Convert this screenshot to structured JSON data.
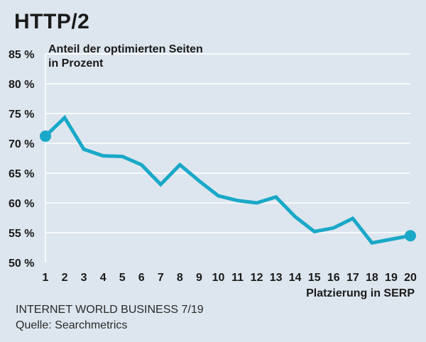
{
  "title": "HTTP/2",
  "source_line1": "INTERNET WORLD BUSINESS 7/19",
  "source_line2": "Quelle: Searchmetrics",
  "colors": {
    "background": "#dde6ee",
    "line": "#1aa8c8",
    "grid": "#ffffff"
  },
  "chart_data": {
    "type": "line",
    "ylabel_line1": "Anteil der optimierten Seiten",
    "ylabel_line2": "in Prozent",
    "xlabel": "Platzierung in SERP",
    "ylim": [
      50,
      85
    ],
    "yticks": [
      50,
      55,
      60,
      65,
      70,
      75,
      80,
      85
    ],
    "ytick_labels": [
      "50 %",
      "55 %",
      "60 %",
      "65 %",
      "70 %",
      "75 %",
      "80 %",
      "85 %"
    ],
    "x": [
      1,
      2,
      3,
      4,
      5,
      6,
      7,
      8,
      9,
      10,
      11,
      12,
      13,
      14,
      15,
      16,
      17,
      18,
      19,
      20
    ],
    "series": [
      {
        "values": [
          71.2,
          74.3,
          69.0,
          67.9,
          67.8,
          66.4,
          63.1,
          66.4,
          63.7,
          61.2,
          60.4,
          60.0,
          61.0,
          57.7,
          55.2,
          55.8,
          57.4,
          53.3,
          53.9,
          54.5
        ]
      }
    ],
    "grid": true,
    "markers_on_endpoints": true
  }
}
